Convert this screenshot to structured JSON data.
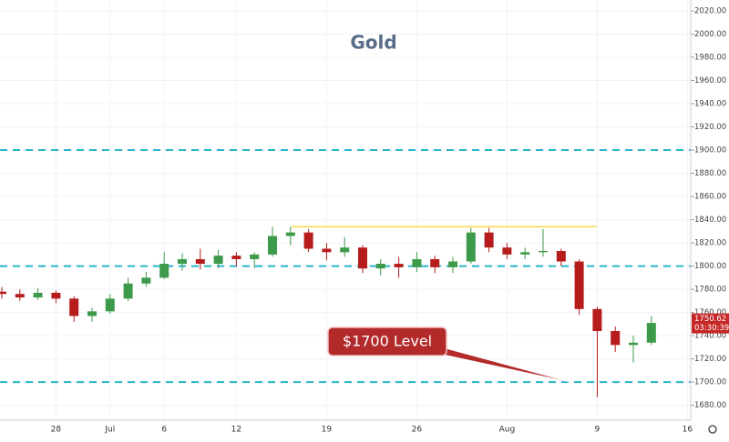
{
  "chart_data": {
    "type": "candlestick",
    "title": "Gold",
    "categories": [
      null,
      null,
      null,
      "28",
      null,
      null,
      "Jul",
      null,
      null,
      "6",
      null,
      null,
      null,
      "12",
      null,
      null,
      null,
      null,
      "19",
      null,
      null,
      null,
      null,
      "26",
      null,
      null,
      null,
      null,
      "Aug",
      null,
      null,
      null,
      null,
      "9",
      null,
      null,
      null,
      null,
      "16"
    ],
    "open": [
      1778,
      1776,
      1773,
      1777,
      1772,
      1757,
      1761,
      1772,
      1785,
      1790,
      1802,
      1806,
      1802,
      1809,
      1806,
      1810,
      1826,
      1829,
      1815,
      1812,
      1816,
      1798,
      1802,
      1799,
      1806,
      1799,
      1804,
      1829,
      1816,
      1810,
      1812,
      1813,
      1804,
      1763,
      1744,
      1732,
      1734,
      null,
      null
    ],
    "high": [
      1782,
      1780,
      1781,
      1779,
      1774,
      1764,
      1776,
      1790,
      1795,
      1812,
      1811,
      1815,
      1814,
      1812,
      1812,
      1834,
      1834,
      1832,
      1820,
      1825,
      1818,
      1806,
      1808,
      1812,
      1809,
      1808,
      1833,
      1833,
      1820,
      1816,
      1832,
      1815,
      1806,
      1765,
      1748,
      1740,
      1757,
      null,
      null
    ],
    "low": [
      1772,
      1770,
      1771,
      1768,
      1752,
      1752,
      1759,
      1770,
      1782,
      1789,
      1796,
      1797,
      1798,
      1800,
      1798,
      1808,
      1818,
      1812,
      1805,
      1808,
      1794,
      1792,
      1790,
      1795,
      1794,
      1794,
      1802,
      1812,
      1806,
      1806,
      1808,
      1800,
      1758,
      1687,
      1726,
      1717,
      1732,
      null,
      null
    ],
    "close": [
      1776,
      1773,
      1777,
      1772,
      1757,
      1761,
      1772,
      1785,
      1790,
      1802,
      1806,
      1802,
      1809,
      1806,
      1810,
      1826,
      1829,
      1815,
      1812,
      1816,
      1798,
      1802,
      1799,
      1806,
      1799,
      1804,
      1829,
      1816,
      1810,
      1812,
      1813,
      1804,
      1763,
      1744,
      1732,
      1734,
      1751,
      null,
      null
    ],
    "up_color": "#3c9a4a",
    "down_color": "#b71c1c",
    "ylim": [
      1667.2,
      2029.4
    ],
    "yticks": [
      {
        "value": 1680,
        "label": "1680.00"
      },
      {
        "value": 1700,
        "label": "1700.00"
      },
      {
        "value": 1720,
        "label": "1720.00"
      },
      {
        "value": 1740,
        "label": "1740.00"
      },
      {
        "value": 1760,
        "label": "1760.00"
      },
      {
        "value": 1780,
        "label": "1780.00"
      },
      {
        "value": 1800,
        "label": "1800.00"
      },
      {
        "value": 1820,
        "label": "1820.00"
      },
      {
        "value": 1840,
        "label": "1840.00"
      },
      {
        "value": 1860,
        "label": "1860.00"
      },
      {
        "value": 1880,
        "label": "1880.00"
      },
      {
        "value": 1900,
        "label": "1900.00"
      },
      {
        "value": 1920,
        "label": "1920.00"
      },
      {
        "value": 1940,
        "label": "1940.00"
      },
      {
        "value": 1960,
        "label": "1960.00"
      },
      {
        "value": 1980,
        "label": "1980.00"
      },
      {
        "value": 2000,
        "label": "2000.00"
      },
      {
        "value": 2020,
        "label": "2020.00"
      }
    ],
    "grid": true,
    "levels": [
      1900,
      1800,
      1700
    ],
    "levels_color": "#26b5c9",
    "resistance": 1834,
    "resistance_color": "#f2d21b",
    "annotation": "$1700 Level",
    "last_price": 1750.62,
    "countdown": "03:30:39"
  }
}
